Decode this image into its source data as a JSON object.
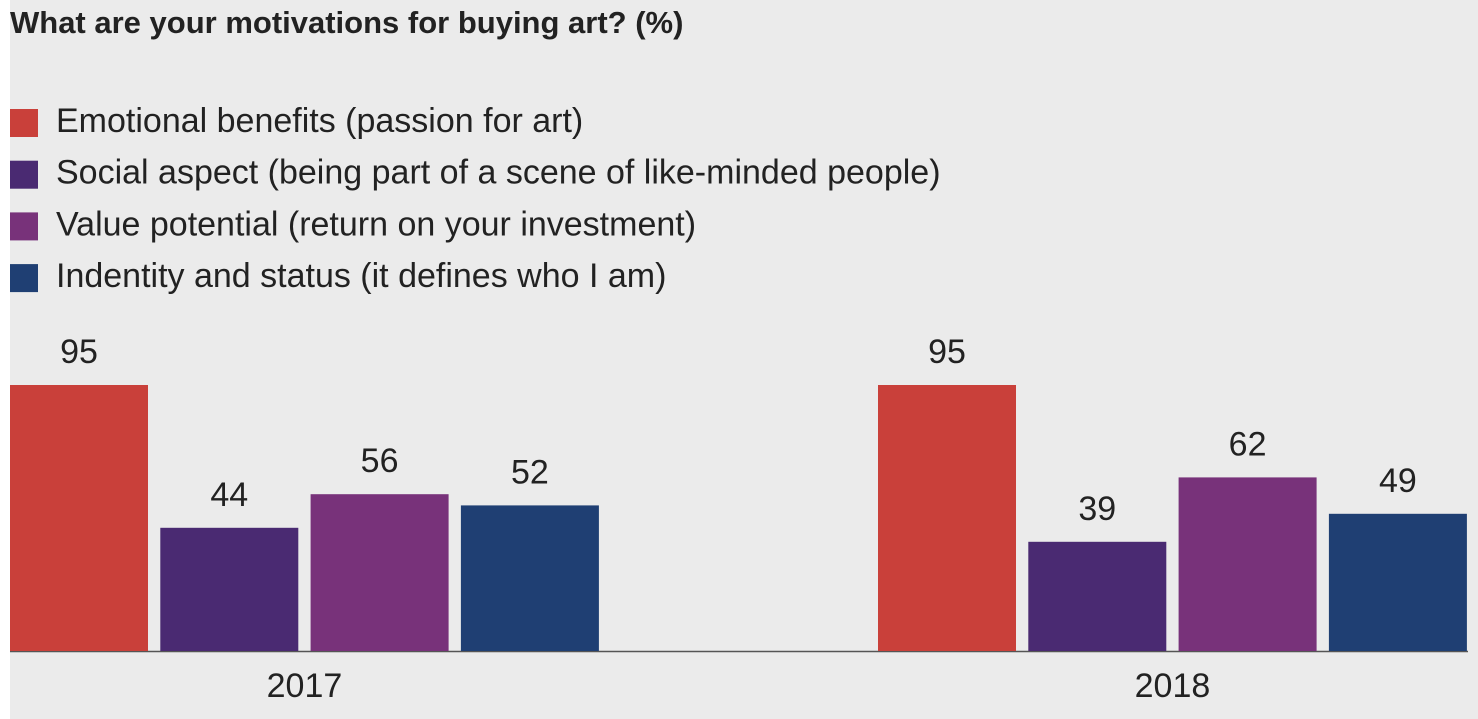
{
  "chart_data": {
    "type": "bar",
    "title": "What are your motivations for buying art? (%)",
    "categories": [
      "2017",
      "2018"
    ],
    "series": [
      {
        "name": "Emotional benefits (passion for art)",
        "color": "#c9403a",
        "values": [
          95,
          95
        ]
      },
      {
        "name": "Social aspect (being part of a scene of like-minded people)",
        "color": "#4a2a72",
        "values": [
          44,
          39
        ]
      },
      {
        "name": "Value potential (return on your investment)",
        "color": "#78327a",
        "values": [
          56,
          62
        ]
      },
      {
        "name": "Indentity and status (it defines who I am)",
        "color": "#1f3f73",
        "values": [
          52,
          49
        ]
      }
    ]
  }
}
